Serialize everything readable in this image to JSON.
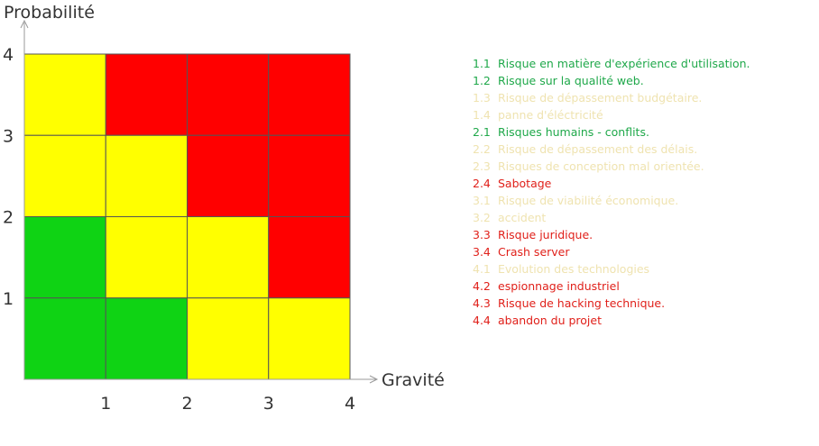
{
  "chart_data": {
    "type": "heatmap",
    "title": "",
    "xlabel": "Gravité",
    "ylabel": "Probabilité",
    "xlim": [
      0,
      4
    ],
    "ylim": [
      0,
      4
    ],
    "x_ticks": [
      "1",
      "2",
      "3",
      "4"
    ],
    "y_ticks": [
      "1",
      "2",
      "3",
      "4"
    ],
    "colors": {
      "green": "#0FD314",
      "yellow": "#FFFF00",
      "red": "#FF0000"
    },
    "grid_rows": [
      {
        "probability": 4,
        "levels": [
          "yellow",
          "red",
          "red",
          "red"
        ]
      },
      {
        "probability": 3,
        "levels": [
          "yellow",
          "yellow",
          "red",
          "red"
        ]
      },
      {
        "probability": 2,
        "levels": [
          "green",
          "yellow",
          "yellow",
          "red"
        ]
      },
      {
        "probability": 1,
        "levels": [
          "green",
          "green",
          "yellow",
          "yellow"
        ]
      }
    ]
  },
  "risks": [
    {
      "id": "1.1",
      "label": "Risque en matière d'expérience d'utilisation.",
      "color": "#1FA84A"
    },
    {
      "id": "1.2",
      "label": "Risque sur la qualité web.",
      "color": "#1FA84A"
    },
    {
      "id": "1.3",
      "label": "Risque de dépassement budgétaire.",
      "color": "#EFE3B0"
    },
    {
      "id": "1.4",
      "label": "panne d'éléctricité",
      "color": "#EFE3B0"
    },
    {
      "id": "2.1",
      "label": "Risques humains - conflits.",
      "color": "#1FA84A"
    },
    {
      "id": "2.2",
      "label": "Risque de dépassement des délais.",
      "color": "#EFE3B0"
    },
    {
      "id": "2.3",
      "label": "Risques de conception mal orientée.",
      "color": "#EFE3B0"
    },
    {
      "id": "2.4",
      "label": "Sabotage",
      "color": "#E0201A"
    },
    {
      "id": "3.1",
      "label": "Risque de viabilité économique.",
      "color": "#EFE3B0"
    },
    {
      "id": "3.2",
      "label": "accident",
      "color": "#EFE3B0"
    },
    {
      "id": "3.3",
      "label": "Risque juridique.",
      "color": "#E0201A"
    },
    {
      "id": "3.4",
      "label": "Crash server",
      "color": "#E0201A"
    },
    {
      "id": "4.1",
      "label": "Evolution des technologies",
      "color": "#EFE3B0"
    },
    {
      "id": "4.2",
      "label": "espionnage industriel",
      "color": "#E0201A"
    },
    {
      "id": "4.3",
      "label": "Risque de hacking technique.",
      "color": "#E0201A"
    },
    {
      "id": "4.4",
      "label": "abandon du projet",
      "color": "#E0201A"
    }
  ]
}
